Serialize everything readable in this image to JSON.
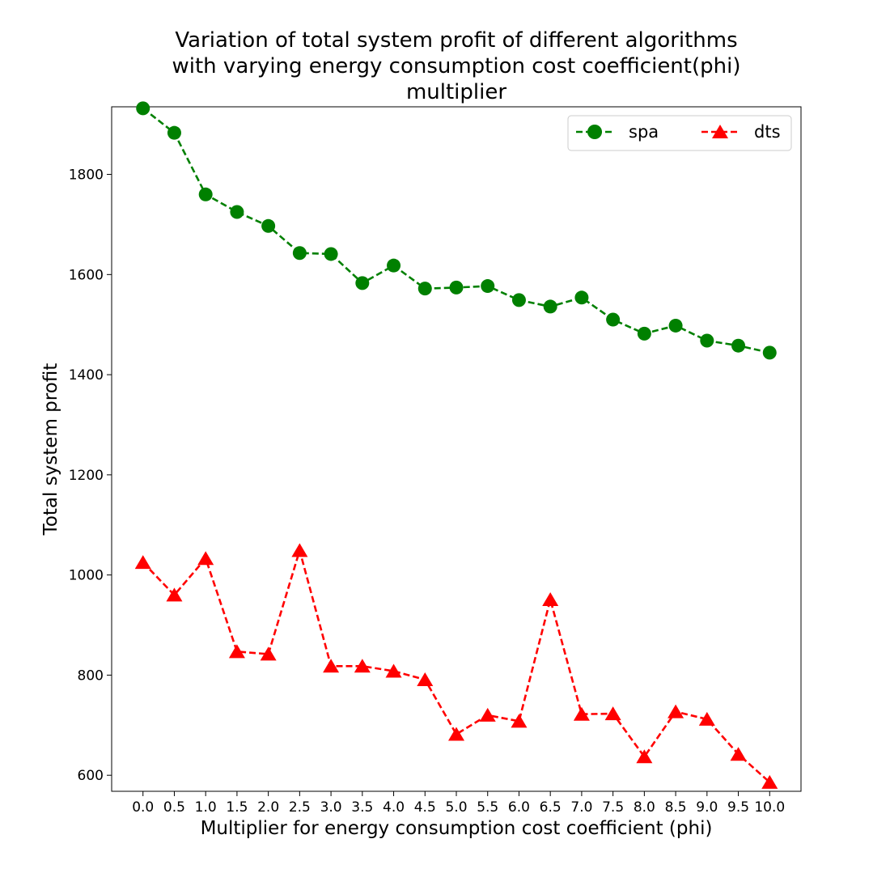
{
  "chart_data": {
    "type": "line",
    "title_lines": [
      "Variation of total system profit of different algorithms",
      "with varying energy consumption cost coefficient(phi)",
      "multiplier"
    ],
    "xlabel": "Multiplier for energy consumption cost coefficient (phi)",
    "ylabel": "Total system profit",
    "x": [
      0.0,
      0.5,
      1.0,
      1.5,
      2.0,
      2.5,
      3.0,
      3.5,
      4.0,
      4.5,
      5.0,
      5.5,
      6.0,
      6.5,
      7.0,
      7.5,
      8.0,
      8.5,
      9.0,
      9.5,
      10.0
    ],
    "x_tick_labels": [
      "0.0",
      "0.5",
      "1.0",
      "1.5",
      "2.0",
      "2.5",
      "3.0",
      "3.5",
      "4.0",
      "4.5",
      "5.0",
      "5.5",
      "6.0",
      "6.5",
      "7.0",
      "7.5",
      "8.0",
      "8.5",
      "9.0",
      "9.5",
      "10.0"
    ],
    "y_ticks": [
      600,
      800,
      1000,
      1200,
      1400,
      1600,
      1800
    ],
    "xlim": [
      -0.5,
      10.5
    ],
    "ylim": [
      568,
      1935
    ],
    "grid": false,
    "legend_position": "top-right",
    "series": [
      {
        "name": "spa",
        "color": "#008000",
        "marker": "circle",
        "line_style": "dashed",
        "values": [
          1932,
          1883,
          1760,
          1725,
          1697,
          1643,
          1641,
          1583,
          1618,
          1572,
          1574,
          1577,
          1549,
          1536,
          1554,
          1510,
          1482,
          1498,
          1468,
          1458,
          1444
        ]
      },
      {
        "name": "dts",
        "color": "#ff0000",
        "marker": "triangle",
        "line_style": "dashed",
        "values": [
          1025,
          960,
          1033,
          847,
          842,
          1049,
          818,
          818,
          808,
          791,
          682,
          720,
          708,
          951,
          722,
          723,
          637,
          727,
          712,
          642,
          586
        ]
      }
    ]
  }
}
